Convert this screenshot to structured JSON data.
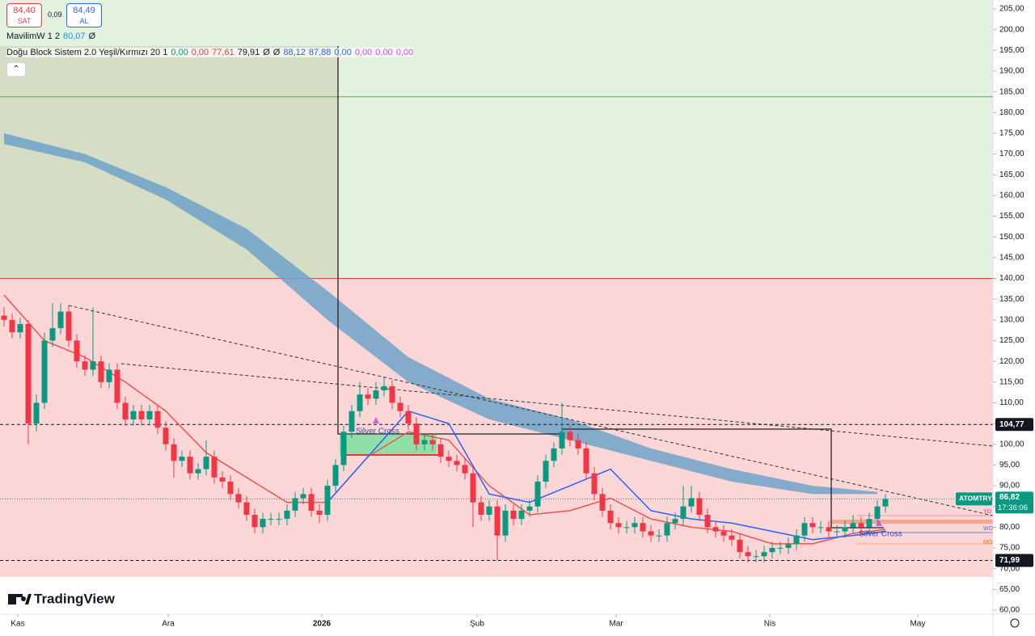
{
  "header": {
    "sell_price": "84,40",
    "sell_label": "SAT",
    "spread": "0,09",
    "buy_price": "84,49",
    "buy_label": "AL"
  },
  "indicators": [
    {
      "name": "MavilimW 1 2",
      "values": [
        {
          "text": "80,07",
          "color": "#2196f3"
        },
        {
          "text": "Ø",
          "color": "#131722"
        }
      ]
    },
    {
      "name": "Doğu Block Sistem 2.0 Yeşil/Kırmızı 20 1",
      "values": [
        {
          "text": "0,00",
          "color": "#089981"
        },
        {
          "text": "0,00",
          "color": "#f23645"
        },
        {
          "text": "77,61",
          "color": "#f23645"
        },
        {
          "text": "79,91",
          "color": "#131722"
        },
        {
          "text": "Ø",
          "color": "#131722"
        },
        {
          "text": "Ø",
          "color": "#131722"
        },
        {
          "text": "88,12",
          "color": "#2962ff"
        },
        {
          "text": "87,88",
          "color": "#2962ff"
        },
        {
          "text": "0,00",
          "color": "#2962ff"
        },
        {
          "text": "0,00",
          "color": "#e040fb"
        },
        {
          "text": "0,00",
          "color": "#e040fb"
        },
        {
          "text": "0,00",
          "color": "#e040fb"
        }
      ]
    }
  ],
  "branding": "TradingView",
  "annotations": [
    "Silver Cross",
    "Silver Cross"
  ],
  "level_tags": [
    "YO",
    "WO",
    "MO"
  ],
  "chart_data": {
    "type": "candlestick",
    "symbol": "ATOMTRY",
    "countdown": "17:36:06",
    "last_price": {
      "value": 86.82,
      "label": "86,82"
    },
    "up_color": "#089981",
    "down_color": "#f23645",
    "ohlc": [
      [
        131,
        133,
        128.5,
        130
      ],
      [
        130,
        131.5,
        125.5,
        127
      ],
      [
        127,
        130.5,
        125.5,
        129
      ],
      [
        129,
        130,
        100,
        105
      ],
      [
        105,
        112,
        103,
        110
      ],
      [
        110,
        127,
        108.5,
        125
      ],
      [
        125,
        134,
        123.5,
        128
      ],
      [
        128,
        134,
        126.5,
        132
      ],
      [
        132,
        133.5,
        123.5,
        125
      ],
      [
        125,
        126.5,
        118.5,
        120
      ],
      [
        120,
        121.5,
        116.5,
        118
      ],
      [
        118,
        133,
        116.5,
        120
      ],
      [
        120,
        121.5,
        113.5,
        115
      ],
      [
        115,
        119.5,
        113.5,
        118
      ],
      [
        118,
        119.5,
        108.5,
        110
      ],
      [
        110,
        111.5,
        104.5,
        106
      ],
      [
        106,
        109.5,
        104.5,
        108
      ],
      [
        108,
        109.5,
        104.5,
        106
      ],
      [
        106,
        109.5,
        104.5,
        108
      ],
      [
        108,
        109.5,
        102.5,
        104
      ],
      [
        104,
        105.5,
        98.5,
        100
      ],
      [
        100,
        101.5,
        92,
        96
      ],
      [
        96,
        98.5,
        94.5,
        97
      ],
      [
        97,
        98.5,
        91.5,
        93
      ],
      [
        93,
        95.5,
        91.5,
        94
      ],
      [
        94,
        101,
        92.5,
        97
      ],
      [
        97,
        98.5,
        90.5,
        92
      ],
      [
        92,
        93.5,
        89.5,
        91
      ],
      [
        91,
        92.5,
        86.5,
        88
      ],
      [
        88,
        89.5,
        84.5,
        86
      ],
      [
        86,
        87.5,
        81.5,
        83
      ],
      [
        83,
        84.5,
        78.5,
        80
      ],
      [
        80,
        83.5,
        78.5,
        82
      ],
      [
        82,
        83.5,
        80.5,
        82
      ],
      [
        82,
        83.5,
        80.5,
        82
      ],
      [
        82,
        85.5,
        80.5,
        84
      ],
      [
        84,
        88.5,
        82.5,
        87
      ],
      [
        87,
        89.5,
        85.5,
        88
      ],
      [
        88,
        89.5,
        82.5,
        84
      ],
      [
        84,
        85.5,
        81,
        83
      ],
      [
        83,
        91.5,
        81.5,
        90
      ],
      [
        90,
        96.5,
        88.5,
        95
      ],
      [
        95,
        104.5,
        93.5,
        103
      ],
      [
        103,
        109.5,
        101.5,
        108
      ],
      [
        108,
        115,
        106.5,
        112
      ],
      [
        112,
        113.5,
        109.5,
        111
      ],
      [
        111,
        115,
        109.5,
        113
      ],
      [
        113,
        116,
        111.5,
        114
      ],
      [
        114,
        115.5,
        108.5,
        110
      ],
      [
        110,
        111.5,
        106.5,
        108
      ],
      [
        108,
        109.5,
        103.5,
        105
      ],
      [
        105,
        106.5,
        98.5,
        100
      ],
      [
        100,
        102.5,
        98.5,
        101
      ],
      [
        101,
        102.5,
        98.5,
        100
      ],
      [
        100,
        101.5,
        95.5,
        97
      ],
      [
        97,
        98.5,
        94.5,
        96
      ],
      [
        96,
        97.5,
        93.5,
        95
      ],
      [
        95,
        96.5,
        91.5,
        93
      ],
      [
        93,
        94.5,
        80,
        86
      ],
      [
        86,
        87.5,
        81.5,
        83
      ],
      [
        83,
        86.5,
        81.5,
        85
      ],
      [
        85,
        86.5,
        72,
        78
      ],
      [
        78,
        85.5,
        76.5,
        84
      ],
      [
        84,
        85.5,
        80.5,
        82
      ],
      [
        82,
        85.5,
        80.5,
        84
      ],
      [
        84,
        86.5,
        82.5,
        85
      ],
      [
        85,
        92.5,
        83.5,
        91
      ],
      [
        91,
        97.5,
        89.5,
        96
      ],
      [
        96,
        100.5,
        94.5,
        99
      ],
      [
        99,
        110,
        97.5,
        103
      ],
      [
        103,
        104.5,
        99.5,
        101
      ],
      [
        101,
        102.5,
        97.5,
        99
      ],
      [
        99,
        100.5,
        91.5,
        93
      ],
      [
        93,
        94.5,
        86.5,
        88
      ],
      [
        88,
        89.5,
        82.5,
        84
      ],
      [
        84,
        85.5,
        79.5,
        81
      ],
      [
        81,
        82.5,
        78.5,
        80
      ],
      [
        80,
        81.5,
        78.5,
        80
      ],
      [
        80,
        82.5,
        78.5,
        81
      ],
      [
        81,
        82.5,
        77.5,
        79
      ],
      [
        79,
        80.5,
        76.5,
        78
      ],
      [
        78,
        79.5,
        76.5,
        78
      ],
      [
        78,
        82.5,
        76.5,
        81
      ],
      [
        81,
        83.5,
        79.5,
        82
      ],
      [
        82,
        90,
        80.5,
        85
      ],
      [
        85,
        90,
        83.5,
        87
      ],
      [
        87,
        88.5,
        81.5,
        83
      ],
      [
        83,
        84.5,
        78.5,
        80
      ],
      [
        80,
        81.5,
        77.5,
        79
      ],
      [
        79,
        80.5,
        76.5,
        78
      ],
      [
        78,
        79.5,
        75.5,
        77
      ],
      [
        77,
        78.5,
        72.5,
        74
      ],
      [
        74,
        75.5,
        71.5,
        73
      ],
      [
        73,
        74.5,
        71.5,
        73
      ],
      [
        73,
        75.5,
        71.5,
        74
      ],
      [
        74,
        76.5,
        72.5,
        75
      ],
      [
        75,
        76.5,
        73.5,
        75
      ],
      [
        75,
        77.5,
        73.5,
        76
      ],
      [
        76,
        79.5,
        74.5,
        78
      ],
      [
        78,
        82.5,
        76.5,
        81
      ],
      [
        81,
        82.5,
        78.5,
        80
      ],
      [
        80,
        81.5,
        78.5,
        80
      ],
      [
        80,
        81.5,
        77.5,
        79
      ],
      [
        79,
        80.5,
        77.5,
        79
      ],
      [
        79,
        81.5,
        77.5,
        80
      ],
      [
        80,
        83,
        78.5,
        81
      ],
      [
        81,
        82.5,
        78.5,
        80
      ],
      [
        80,
        83.5,
        78.5,
        82
      ],
      [
        82,
        86.5,
        80.5,
        85
      ],
      [
        85,
        88,
        83.5,
        86.82
      ]
    ],
    "xlim": [
      -0.5,
      122.3
    ],
    "xticks": [
      {
        "value": 1.7,
        "label": "Kas"
      },
      {
        "value": 20.3,
        "label": "Ara"
      },
      {
        "value": 39.3,
        "label": "2026"
      },
      {
        "value": 58.5,
        "label": "Şub"
      },
      {
        "value": 75.7,
        "label": "Mar"
      },
      {
        "value": 94.7,
        "label": "Nis"
      },
      {
        "value": 113,
        "label": "May"
      }
    ],
    "ylim": [
      60,
      205
    ],
    "yticks": [
      {
        "value": 60,
        "label": "60,00"
      },
      {
        "value": 65,
        "label": "65,00"
      },
      {
        "value": 70,
        "label": "70,00"
      },
      {
        "value": 75,
        "label": "75,00"
      },
      {
        "value": 80,
        "label": "80,00"
      },
      {
        "value": 85,
        "label": "85,00"
      },
      {
        "value": 90,
        "label": "90,00"
      },
      {
        "value": 95,
        "label": "95,00"
      },
      {
        "value": 100,
        "label": "100,00"
      },
      {
        "value": 105,
        "label": "105,00"
      },
      {
        "value": 110,
        "label": "110,00"
      },
      {
        "value": 115,
        "label": "115,00"
      },
      {
        "value": 120,
        "label": "120,00"
      },
      {
        "value": 125,
        "label": "125,00"
      },
      {
        "value": 130,
        "label": "130,00"
      },
      {
        "value": 135,
        "label": "135,00"
      },
      {
        "value": 140,
        "label": "140,00"
      },
      {
        "value": 145,
        "label": "145,00"
      },
      {
        "value": 150,
        "label": "150,00"
      },
      {
        "value": 155,
        "label": "155,00"
      },
      {
        "value": 160,
        "label": "160,00"
      },
      {
        "value": 165,
        "label": "165,00"
      },
      {
        "value": 170,
        "label": "170,00"
      },
      {
        "value": 175,
        "label": "175,00"
      },
      {
        "value": 180,
        "label": "180,00"
      },
      {
        "value": 185,
        "label": "185,00"
      },
      {
        "value": 190,
        "label": "190,00"
      },
      {
        "value": 195,
        "label": "195,00"
      },
      {
        "value": 200,
        "label": "200,00"
      },
      {
        "value": 205,
        "label": "205,00"
      }
    ],
    "zones": [
      {
        "low": 140,
        "high": 205,
        "color": "#e2f2df"
      },
      {
        "low": 68,
        "high": 140,
        "color": "#fbd6d6"
      }
    ],
    "levels": [
      {
        "value": 183.8,
        "color": "#4caf50"
      },
      {
        "value": 140,
        "color": "#e53935"
      }
    ],
    "hlines": [
      {
        "value": 104.77,
        "label": "104,77"
      },
      {
        "value": 71.99,
        "label": "71,99"
      }
    ],
    "cloud": {
      "color": "#6fa3c9",
      "x": [
        0,
        10,
        20,
        30,
        40,
        50,
        60,
        70,
        80,
        90,
        100,
        108
      ],
      "upper": [
        175,
        170,
        162,
        152,
        137,
        121,
        111,
        106,
        99,
        94,
        90,
        88.5
      ],
      "lower": [
        172.4,
        168,
        159,
        147,
        130,
        115,
        106,
        101,
        96,
        91,
        88,
        88
      ]
    },
    "overlay_x": [
      0,
      5,
      10,
      15,
      20,
      25,
      30,
      35,
      40,
      45,
      50,
      55,
      60,
      65,
      70,
      75,
      80,
      85,
      90,
      95,
      100,
      105,
      109
    ],
    "overlays": [
      {
        "color": "#ef5350",
        "values": [
          136,
          125,
          121,
          115,
          108,
          98,
          92,
          86,
          86,
          97,
          103,
          101,
          90,
          83,
          84,
          87,
          82,
          80,
          79,
          76,
          76,
          78.5,
          79.5
        ]
      },
      {
        "color": "#2962ff",
        "values": [
          null,
          null,
          null,
          null,
          null,
          null,
          null,
          null,
          86,
          97,
          108,
          105,
          88,
          86,
          90,
          94,
          84,
          82,
          81,
          79,
          77,
          78,
          79
        ]
      }
    ]
  }
}
